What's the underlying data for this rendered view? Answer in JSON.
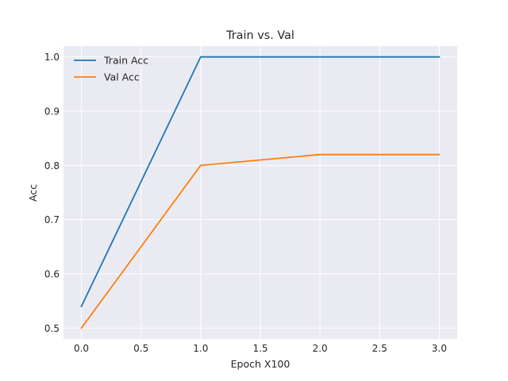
{
  "chart_data": {
    "type": "line",
    "title": "Train vs. Val",
    "xlabel": "Epoch X100",
    "ylabel": "Acc",
    "x": [
      0,
      1,
      2,
      3
    ],
    "xlim": [
      -0.15,
      3.15
    ],
    "ylim": [
      0.48,
      1.02
    ],
    "xticks": [
      0.0,
      0.5,
      1.0,
      1.5,
      2.0,
      2.5,
      3.0
    ],
    "xtick_labels": [
      "0.0",
      "0.5",
      "1.0",
      "1.5",
      "2.0",
      "2.5",
      "3.0"
    ],
    "yticks": [
      0.5,
      0.6,
      0.7,
      0.8,
      0.9,
      1.0
    ],
    "ytick_labels": [
      "0.5",
      "0.6",
      "0.7",
      "0.8",
      "0.9",
      "1.0"
    ],
    "grid": true,
    "legend_position": "top-left",
    "series": [
      {
        "name": "Train Acc",
        "values": [
          0.54,
          1.0,
          1.0,
          1.0
        ],
        "color": "#1f77b4"
      },
      {
        "name": "Val Acc",
        "values": [
          0.5,
          0.8,
          0.82,
          0.82
        ],
        "color": "#ff7f0e"
      }
    ],
    "plot_background": "#eaeaf2",
    "grid_color": "#ffffff"
  }
}
